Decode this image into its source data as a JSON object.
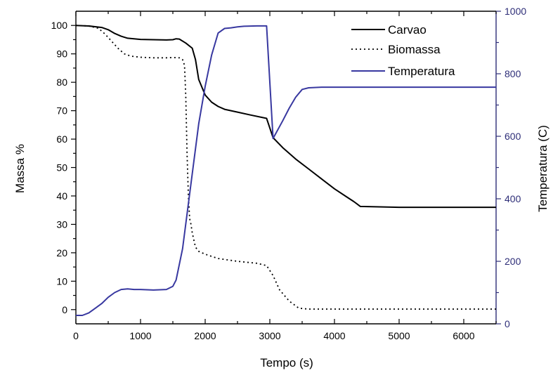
{
  "chart_data": {
    "type": "line",
    "title": "",
    "xlabel": "Tempo (s)",
    "ylabel_left": "Massa %",
    "ylabel_right": "Temperatura (C)",
    "xlim": [
      0,
      6500
    ],
    "ylim_left": [
      -5,
      105
    ],
    "ylim_right": [
      0,
      1000
    ],
    "x_ticks": [
      0,
      1000,
      2000,
      3000,
      4000,
      5000,
      6000
    ],
    "y_left_ticks": [
      0,
      10,
      20,
      30,
      40,
      50,
      60,
      70,
      80,
      90,
      100
    ],
    "y_right_ticks": [
      0,
      200,
      400,
      600,
      800,
      1000
    ],
    "grid": false,
    "legend_position": "top-right",
    "colors": {
      "axis_left": "#000000",
      "axis_right": "#2e2e78",
      "carvao": "#000000",
      "biomassa": "#000000",
      "temperatura": "#3838a0"
    },
    "series": [
      {
        "name": "Carvao",
        "axis": "left",
        "style": "solid",
        "x": [
          0,
          200,
          400,
          500,
          600,
          700,
          800,
          1000,
          1200,
          1400,
          1500,
          1550,
          1600,
          1700,
          1800,
          1850,
          1900,
          2000,
          2100,
          2200,
          2300,
          2500,
          2700,
          2950,
          3050,
          3200,
          3400,
          3600,
          3800,
          4000,
          4200,
          4300,
          4400,
          5000,
          6000,
          6500
        ],
        "y": [
          100,
          99.8,
          99.3,
          98.5,
          97.2,
          96.2,
          95.5,
          95.1,
          95.0,
          94.9,
          95.0,
          95.3,
          95.2,
          93.8,
          92.0,
          88,
          81,
          75.5,
          73,
          71.5,
          70.5,
          69.5,
          68.5,
          67.3,
          60.5,
          57,
          53,
          49.5,
          46,
          42.5,
          39.5,
          38,
          36.3,
          36,
          36,
          36
        ]
      },
      {
        "name": "Biomassa",
        "axis": "left",
        "style": "dotted",
        "x": [
          0,
          200,
          350,
          450,
          550,
          650,
          750,
          850,
          1000,
          1200,
          1400,
          1500,
          1600,
          1650,
          1680,
          1700,
          1720,
          1740,
          1760,
          1780,
          1800,
          1850,
          1900,
          2000,
          2200,
          2500,
          2800,
          2950,
          3050,
          3150,
          3300,
          3450,
          3600,
          4000,
          5000,
          6500
        ],
        "y": [
          100,
          99.8,
          99,
          97,
          94.5,
          92,
          90,
          89.2,
          88.8,
          88.6,
          88.6,
          88.7,
          88.6,
          88,
          86,
          75,
          55,
          40,
          32,
          30,
          27,
          22,
          20.5,
          19.5,
          18,
          17,
          16.3,
          15.5,
          12,
          7,
          3,
          0.5,
          0.2,
          0.2,
          0.2,
          0.2
        ]
      },
      {
        "name": "Temperatura",
        "axis": "right",
        "style": "solid",
        "x": [
          0,
          100,
          200,
          300,
          400,
          500,
          600,
          700,
          800,
          900,
          1000,
          1200,
          1400,
          1500,
          1550,
          1600,
          1650,
          1700,
          1750,
          1800,
          1900,
          2000,
          2100,
          2200,
          2300,
          2400,
          2500,
          2600,
          2800,
          2950,
          3050,
          3200,
          3300,
          3400,
          3500,
          3600,
          3800,
          4000,
          4500,
          5000,
          6000,
          6500
        ],
        "y": [
          27,
          27,
          35,
          50,
          65,
          85,
          100,
          110,
          112,
          110,
          110,
          108,
          110,
          120,
          140,
          190,
          240,
          320,
          400,
          480,
          640,
          760,
          860,
          930,
          945,
          947,
          950,
          952,
          953,
          953,
          593,
          650,
          690,
          725,
          750,
          755,
          757,
          757,
          757,
          757,
          757,
          757
        ]
      }
    ]
  }
}
